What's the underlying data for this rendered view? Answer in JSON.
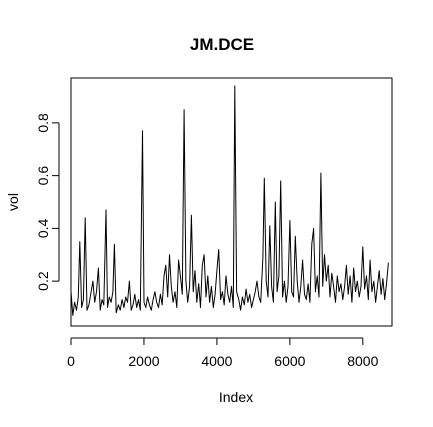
{
  "chart_data": {
    "type": "line",
    "title": "JM.DCE",
    "xlabel": "Index",
    "ylabel": "vol",
    "xlim": [
      0,
      8800
    ],
    "ylim": [
      0.03,
      0.97
    ],
    "xticks": [
      0,
      2000,
      4000,
      6000,
      8000
    ],
    "xtick_labels": [
      "0",
      "2000",
      "4000",
      "6000",
      "8000"
    ],
    "yticks": [
      0.2,
      0.4,
      0.6,
      0.8
    ],
    "ytick_labels": [
      "0.2",
      "0.4",
      "0.6",
      "0.8"
    ],
    "grid": false,
    "legend": "none",
    "color": "#000000",
    "series": [
      {
        "x": [
          0,
          50,
          100,
          150,
          200,
          240,
          290,
          340,
          390,
          440,
          490,
          540,
          600,
          650,
          700,
          750,
          800,
          850,
          900,
          960,
          1000,
          1050,
          1100,
          1150,
          1190,
          1240,
          1300,
          1350,
          1400,
          1450,
          1500,
          1550,
          1600,
          1650,
          1700,
          1750,
          1800,
          1850,
          1900,
          1960,
          2000,
          2050,
          2100,
          2150,
          2200,
          2250,
          2300,
          2350,
          2400,
          2450,
          2500,
          2550,
          2600,
          2650,
          2700,
          2750,
          2800,
          2850,
          2900,
          2950,
          3000,
          3050,
          3100,
          3150,
          3200,
          3250,
          3300,
          3350,
          3400,
          3450,
          3500,
          3550,
          3600,
          3650,
          3700,
          3750,
          3800,
          3850,
          3900,
          3950,
          4000,
          4050,
          4100,
          4150,
          4200,
          4250,
          4300,
          4350,
          4400,
          4450,
          4490,
          4540,
          4600,
          4650,
          4700,
          4750,
          4800,
          4850,
          4900,
          4950,
          5000,
          5050,
          5100,
          5150,
          5200,
          5260,
          5300,
          5350,
          5400,
          5450,
          5500,
          5550,
          5600,
          5650,
          5700,
          5750,
          5800,
          5850,
          5900,
          5950,
          6000,
          6050,
          6100,
          6150,
          6200,
          6250,
          6300,
          6350,
          6400,
          6450,
          6500,
          6550,
          6600,
          6650,
          6700,
          6750,
          6800,
          6850,
          6900,
          6950,
          7000,
          7050,
          7100,
          7150,
          7200,
          7250,
          7300,
          7350,
          7400,
          7450,
          7500,
          7550,
          7600,
          7650,
          7700,
          7750,
          7800,
          7850,
          7900,
          7950,
          8000,
          8050,
          8100,
          8150,
          8200,
          8250,
          8300,
          8350,
          8400,
          8450,
          8500,
          8550,
          8600,
          8650,
          8700
        ],
        "values": [
          0.16,
          0.07,
          0.12,
          0.09,
          0.14,
          0.35,
          0.1,
          0.13,
          0.44,
          0.09,
          0.11,
          0.15,
          0.2,
          0.12,
          0.16,
          0.25,
          0.09,
          0.13,
          0.11,
          0.47,
          0.1,
          0.14,
          0.12,
          0.16,
          0.34,
          0.08,
          0.11,
          0.09,
          0.13,
          0.1,
          0.14,
          0.12,
          0.2,
          0.09,
          0.11,
          0.15,
          0.1,
          0.13,
          0.09,
          0.77,
          0.12,
          0.1,
          0.14,
          0.11,
          0.09,
          0.13,
          0.16,
          0.12,
          0.1,
          0.15,
          0.11,
          0.22,
          0.26,
          0.14,
          0.3,
          0.18,
          0.12,
          0.16,
          0.1,
          0.28,
          0.22,
          0.15,
          0.85,
          0.2,
          0.12,
          0.18,
          0.45,
          0.16,
          0.24,
          0.12,
          0.19,
          0.1,
          0.26,
          0.3,
          0.14,
          0.22,
          0.12,
          0.18,
          0.1,
          0.15,
          0.24,
          0.32,
          0.13,
          0.16,
          0.11,
          0.22,
          0.15,
          0.12,
          0.18,
          0.1,
          0.94,
          0.16,
          0.13,
          0.09,
          0.14,
          0.11,
          0.17,
          0.12,
          0.15,
          0.1,
          0.13,
          0.16,
          0.2,
          0.14,
          0.12,
          0.29,
          0.59,
          0.2,
          0.14,
          0.41,
          0.18,
          0.12,
          0.5,
          0.16,
          0.22,
          0.58,
          0.14,
          0.2,
          0.12,
          0.18,
          0.43,
          0.16,
          0.14,
          0.37,
          0.2,
          0.12,
          0.18,
          0.28,
          0.15,
          0.13,
          0.19,
          0.12,
          0.34,
          0.4,
          0.16,
          0.22,
          0.14,
          0.61,
          0.18,
          0.3,
          0.2,
          0.26,
          0.14,
          0.23,
          0.18,
          0.12,
          0.22,
          0.16,
          0.19,
          0.13,
          0.18,
          0.26,
          0.15,
          0.22,
          0.12,
          0.25,
          0.16,
          0.2,
          0.14,
          0.18,
          0.33,
          0.17,
          0.22,
          0.13,
          0.28,
          0.16,
          0.2,
          0.12,
          0.18,
          0.24,
          0.15,
          0.21,
          0.13,
          0.19,
          0.27
        ]
      }
    ]
  }
}
